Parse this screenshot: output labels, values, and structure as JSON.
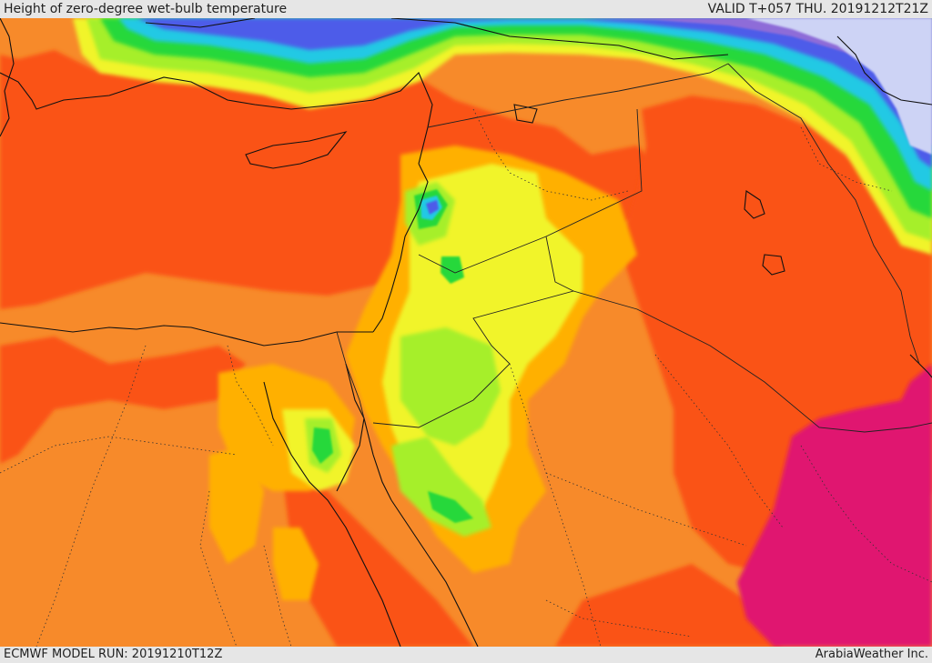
{
  "header": {
    "title": "Height of zero-degree wet-bulb temperature",
    "valid": "VALID T+057 THU. 20191212T21Z"
  },
  "footer": {
    "model_run": "ECMWF MODEL RUN: 20191210T12Z",
    "credit": "ArabiaWeather Inc."
  },
  "legend_colors": {
    "magenta": "#e0166f",
    "red_orange": "#fa5317",
    "orange": "#f78a2a",
    "amber": "#ffb000",
    "yellow": "#f1f42a",
    "light_green": "#a6ef2a",
    "green": "#27d83b",
    "cyan": "#23c9e4",
    "blue": "#4d5be9",
    "purple": "#8e6cd8",
    "pale_lavender": "#cdd3f5"
  }
}
